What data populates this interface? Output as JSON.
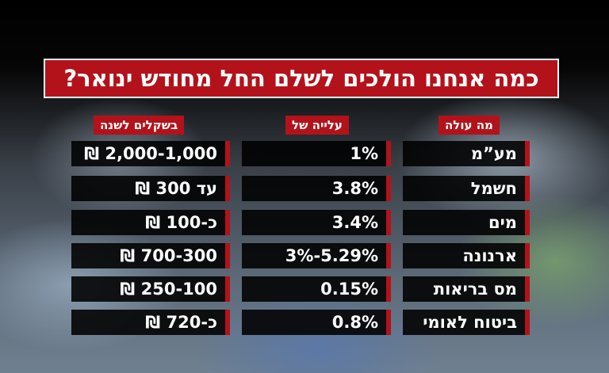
{
  "header": {
    "title": "כמה אנחנו הולכים לשלם החל מחודש ינואר?"
  },
  "table": {
    "headers": [
      "מה עולה",
      "עלייה של",
      "בשקלים לשנה"
    ],
    "rows": [
      [
        "מע”מ",
        "1%",
        "2,000-1,000 ₪"
      ],
      [
        "חשמל",
        "3.8%",
        "עד 300 ₪"
      ],
      [
        "מים",
        "3.4%",
        "כ-100 ₪"
      ],
      [
        "ארנונה",
        "5.29%-3%",
        "700-300 ₪"
      ],
      [
        "מס בריאות",
        "0.15%",
        "250-100 ₪"
      ],
      [
        "ביטוח לאומי",
        "0.8%",
        "כ-720 ₪"
      ]
    ]
  }
}
